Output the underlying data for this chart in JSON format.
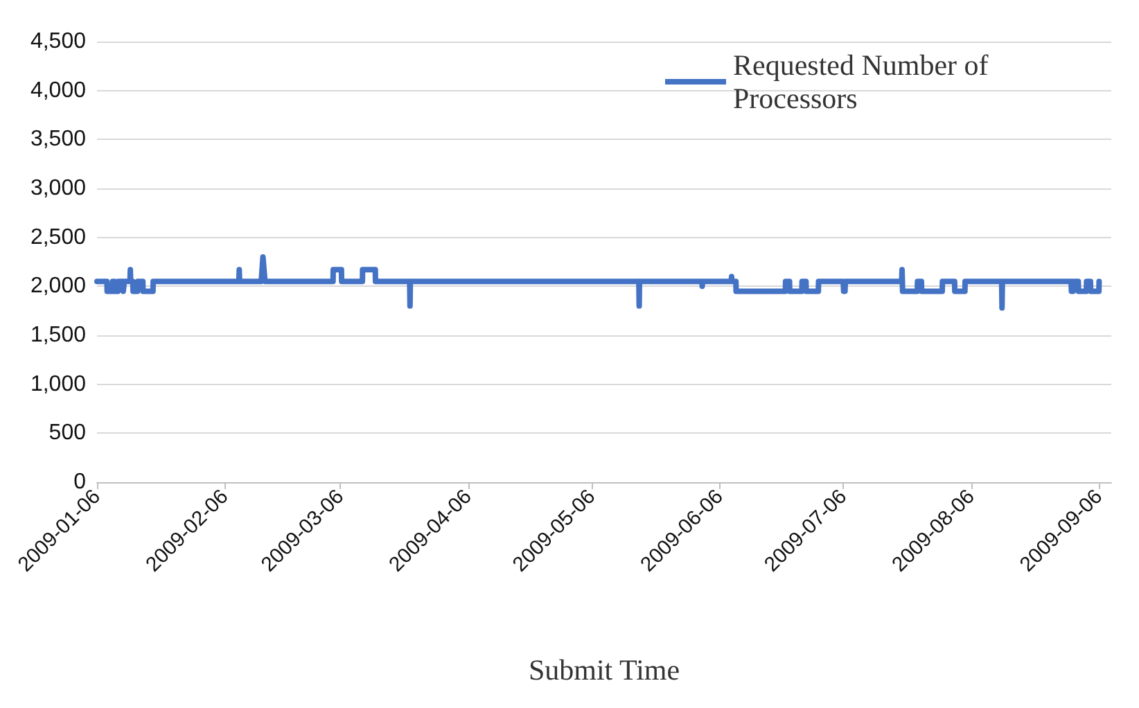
{
  "chart_data": {
    "type": "line",
    "xlabel": "Submit Time",
    "xlim": [
      "2009-01-06",
      "2009-09-09"
    ],
    "xticks": [
      "2009-01-06",
      "2009-02-06",
      "2009-03-06",
      "2009-04-06",
      "2009-05-06",
      "2009-06-06",
      "2009-07-06",
      "2009-08-06",
      "2009-09-06"
    ],
    "ylim": [
      0,
      4500
    ],
    "yticks": [
      0,
      500,
      {
        "value": 1000,
        "label": "1,000"
      },
      {
        "value": 1500,
        "label": "1,500"
      },
      {
        "value": 2000,
        "label": "2,000"
      },
      {
        "value": 2500,
        "label": "2,500"
      },
      {
        "value": 3000,
        "label": "3,000"
      },
      {
        "value": 3500,
        "label": "3,500"
      },
      {
        "value": 4000,
        "label": "4,000"
      },
      {
        "value": 4500,
        "label": "4,500"
      }
    ],
    "grid": "y",
    "legend": "top right",
    "marker": "none",
    "line_style": "solid",
    "series": [
      {
        "name": "Requested Number of Processors",
        "color": "#4472c4",
        "x": [
          "2009-01-06T00:00",
          "2009-01-08T10:00",
          "2009-01-08T11:00",
          "2009-01-09T18:00",
          "2009-01-09T19:00",
          "2009-01-10T06:00",
          "2009-01-10T07:00",
          "2009-01-11T02:00",
          "2009-01-11T03:00",
          "2009-01-12T08:00",
          "2009-01-12T09:00",
          "2009-01-12T14:00",
          "2009-01-12T15:00",
          "2009-01-14T00:00",
          "2009-01-14T02:00",
          "2009-01-14T04:00",
          "2009-01-14T17:00",
          "2009-01-14T18:00",
          "2009-01-15T20:00",
          "2009-01-15T21:00",
          "2009-01-17T03:00",
          "2009-01-17T04:00",
          "2009-01-19T14:00",
          "2009-01-19T15:00",
          "2009-02-09T10:00",
          "2009-02-09T12:00",
          "2009-02-09T14:00",
          "2009-02-14T20:00",
          "2009-02-15T06:00",
          "2009-02-15T18:00",
          "2009-03-04T06:00",
          "2009-03-04T07:00",
          "2009-03-06T07:00",
          "2009-03-06T08:00",
          "2009-03-11T09:00",
          "2009-03-11T10:00",
          "2009-03-14T12:00",
          "2009-03-14T13:00",
          "2009-03-22T20:00",
          "2009-03-22T22:00",
          "2009-03-23T00:00",
          "2009-05-17T10:00",
          "2009-05-17T12:00",
          "2009-05-17T14:00",
          "2009-06-01T17:00",
          "2009-06-01T19:00",
          "2009-06-01T21:00",
          "2009-06-08T20:00",
          "2009-06-08T22:00",
          "2009-06-09T00:00",
          "2009-06-09T23:00",
          "2009-06-10T00:00",
          "2009-06-21T23:00",
          "2009-06-22T00:00",
          "2009-06-22T23:00",
          "2009-06-23T00:00",
          "2009-06-25T23:00",
          "2009-06-26T00:00",
          "2009-06-26T23:00",
          "2009-06-27T00:00",
          "2009-06-29T23:00",
          "2009-06-30T00:00",
          "2009-07-06T00:00",
          "2009-07-06T02:00",
          "2009-07-06T10:00",
          "2009-07-06T12:00",
          "2009-07-20T04:00",
          "2009-07-20T06:00",
          "2009-07-20T08:00",
          "2009-07-20T09:00",
          "2009-07-23T23:00",
          "2009-07-24T00:00",
          "2009-07-24T23:00",
          "2009-07-25T00:00",
          "2009-07-30T00:00",
          "2009-07-30T01:00",
          "2009-08-02T00:00",
          "2009-08-02T01:00",
          "2009-08-04T12:00",
          "2009-08-04T13:00",
          "2009-08-13T10:00",
          "2009-08-13T12:00",
          "2009-08-13T14:00",
          "2009-08-30T06:00",
          "2009-08-30T08:00",
          "2009-08-30T18:00",
          "2009-08-30T20:00",
          "2009-09-01T00:00",
          "2009-09-01T01:00",
          "2009-09-02T23:00",
          "2009-09-03T00:00",
          "2009-09-03T23:00",
          "2009-09-04T00:00",
          "2009-09-06T00:00",
          "2009-09-06T01:00"
        ],
        "values": [
          2050,
          2050,
          1950,
          1950,
          2050,
          2050,
          1950,
          1950,
          2050,
          2050,
          1950,
          1950,
          2050,
          2050,
          2170,
          2050,
          2050,
          1950,
          1950,
          2050,
          2050,
          1950,
          1950,
          2050,
          2050,
          2170,
          2050,
          2050,
          2300,
          2050,
          2050,
          2170,
          2170,
          2050,
          2050,
          2170,
          2170,
          2050,
          2050,
          1800,
          2050,
          2050,
          1800,
          2050,
          2050,
          2000,
          2050,
          2050,
          2100,
          2050,
          2050,
          1950,
          1950,
          2050,
          2050,
          1950,
          1950,
          2050,
          2050,
          1950,
          1950,
          2050,
          2050,
          1950,
          1950,
          2050,
          2050,
          2170,
          2050,
          1950,
          1950,
          2050,
          2050,
          1950,
          1950,
          2050,
          2050,
          1950,
          1950,
          2050,
          2050,
          1780,
          2050,
          2050,
          1950,
          1950,
          2050,
          2050,
          1950,
          1950,
          2050,
          2050,
          1950,
          1950,
          2050
        ]
      }
    ]
  }
}
